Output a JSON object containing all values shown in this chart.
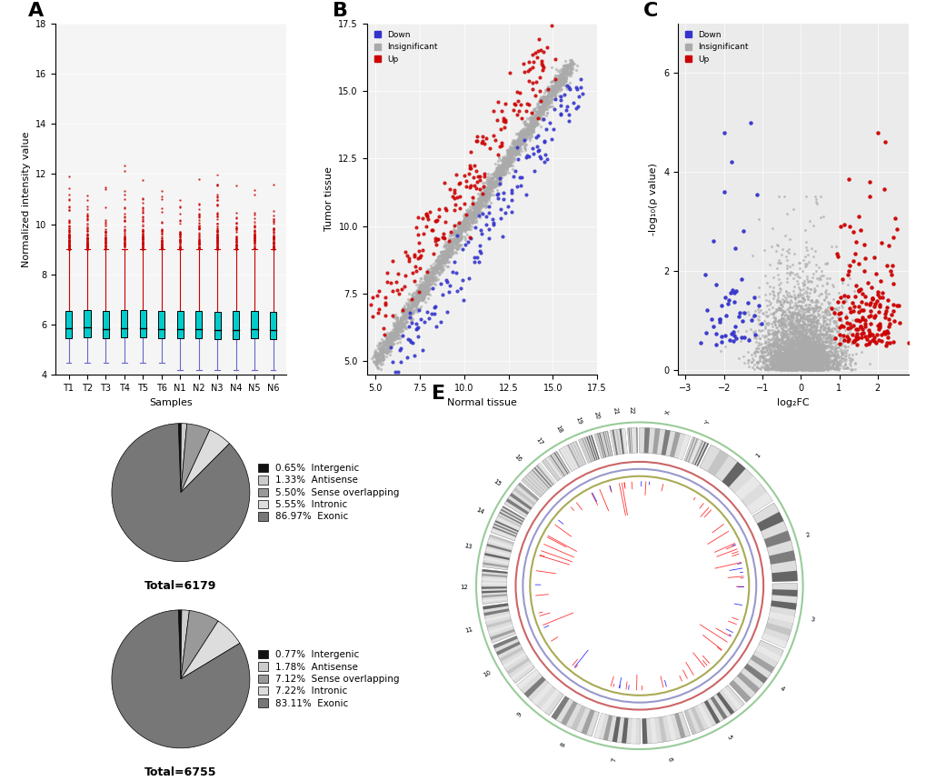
{
  "panel_A": {
    "samples": [
      "T1",
      "T2",
      "T3",
      "T4",
      "T5",
      "T6",
      "N1",
      "N2",
      "N3",
      "N4",
      "N5",
      "N6"
    ],
    "box_median": [
      5.85,
      5.9,
      5.82,
      5.85,
      5.85,
      5.83,
      5.82,
      5.82,
      5.78,
      5.8,
      5.82,
      5.8
    ],
    "box_q1": [
      5.45,
      5.5,
      5.45,
      5.48,
      5.48,
      5.45,
      5.45,
      5.45,
      5.42,
      5.43,
      5.45,
      5.42
    ],
    "box_q3": [
      6.55,
      6.6,
      6.55,
      6.58,
      6.58,
      6.55,
      6.55,
      6.55,
      6.52,
      6.53,
      6.55,
      6.52
    ],
    "whisker_low": [
      4.5,
      4.5,
      4.5,
      4.5,
      4.5,
      4.5,
      4.2,
      4.2,
      4.2,
      4.2,
      4.2,
      4.2
    ],
    "whisker_high": [
      9.0,
      9.0,
      9.0,
      9.0,
      9.0,
      9.0,
      9.0,
      9.0,
      9.0,
      9.0,
      9.0,
      9.0
    ],
    "ylim": [
      4,
      18
    ],
    "yticks": [
      4,
      6,
      8,
      10,
      12,
      14,
      16,
      18
    ],
    "ylabel": "Normalized intensity value",
    "xlabel": "Samples",
    "box_color": "#00CCCC",
    "whisker_color_up": "#CC0000",
    "whisker_color_down": "#6666CC",
    "flier_color": "#CC0000"
  },
  "panel_B": {
    "xlim": [
      4.5,
      17.5
    ],
    "ylim": [
      4.5,
      17.5
    ],
    "xticks": [
      5.0,
      7.5,
      10.0,
      12.5,
      15.0,
      17.5
    ],
    "yticks": [
      5.0,
      7.5,
      10.0,
      12.5,
      15.0,
      17.5
    ],
    "xlabel": "Normal tissue",
    "ylabel": "Tumor tissue",
    "color_up": "#CC0000",
    "color_down": "#3333CC",
    "color_insig": "#AAAAAA"
  },
  "panel_C": {
    "xlim": [
      -3.2,
      2.8
    ],
    "ylim": [
      -0.1,
      7.0
    ],
    "xticks": [
      -3,
      -2,
      -1,
      0,
      1,
      2
    ],
    "yticks": [
      0,
      2,
      4,
      6
    ],
    "xlabel": "log₂FC",
    "ylabel": "-log₁₀(ρ value)",
    "color_up": "#CC0000",
    "color_down": "#3333CC",
    "color_insig": "#AAAAAA"
  },
  "panel_D1": {
    "values": [
      0.65,
      1.33,
      5.5,
      5.55,
      86.97
    ],
    "labels": [
      "Intergenic",
      "Antisense",
      "Sense overlapping",
      "Intronic",
      "Exonic"
    ],
    "colors": [
      "#111111",
      "#CCCCCC",
      "#999999",
      "#DDDDDD",
      "#777777"
    ],
    "total": "Total=6179"
  },
  "panel_D2": {
    "values": [
      0.77,
      1.78,
      7.12,
      7.22,
      83.11
    ],
    "labels": [
      "Intergenic",
      "Antisense",
      "Sense overlapping",
      "Intronic",
      "Exonic"
    ],
    "colors": [
      "#111111",
      "#CCCCCC",
      "#999999",
      "#DDDDDD",
      "#777777"
    ],
    "total": "Total=6755"
  },
  "background_color": "#FFFFFF"
}
